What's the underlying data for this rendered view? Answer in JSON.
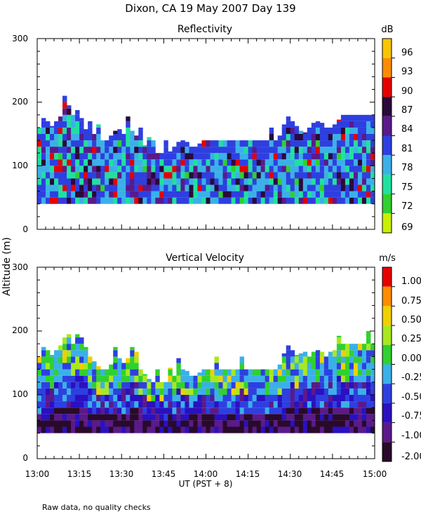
{
  "chart_data": {
    "type": "heatmap",
    "title": "Dixon, CA 19 May 2007  Day 139",
    "ylabel": "Altitude (m)",
    "xlabel": "UT  (PST + 8)",
    "x_ticks": [
      "13:00",
      "13:15",
      "13:30",
      "13:45",
      "14:00",
      "14:15",
      "14:30",
      "14:45",
      "15:00"
    ],
    "xlim_minutes": [
      0,
      120
    ],
    "note": "Raw data, no quality checks",
    "panels": [
      {
        "name": "reflectivity",
        "subtitle": "Reflectivity",
        "units": "dB",
        "ylim": [
          0,
          300
        ],
        "y_ticks": [
          "0",
          "100",
          "200",
          "300"
        ],
        "colorbar_labels": [
          "96",
          "93",
          "90",
          "87",
          "84",
          "81",
          "78",
          "75",
          "72",
          "69"
        ],
        "colorbar_colors": [
          "#f7c600",
          "#ff8c00",
          "#e60000",
          "#2a0a3a",
          "#5a1a8a",
          "#2e3fe0",
          "#3bb0e8",
          "#20e0a0",
          "#30d030",
          "#c8f000"
        ],
        "data_floor_m": 40,
        "echo_top_profile": [
          [
            0,
            160
          ],
          [
            2,
            180
          ],
          [
            4,
            160
          ],
          [
            6,
            170
          ],
          [
            8,
            180
          ],
          [
            10,
            200
          ],
          [
            12,
            180
          ],
          [
            14,
            190
          ],
          [
            16,
            160
          ],
          [
            18,
            150
          ],
          [
            20,
            150
          ],
          [
            22,
            140
          ],
          [
            24,
            140
          ],
          [
            26,
            150
          ],
          [
            28,
            160
          ],
          [
            30,
            150
          ],
          [
            32,
            160
          ],
          [
            34,
            150
          ],
          [
            36,
            140
          ],
          [
            38,
            130
          ],
          [
            40,
            120
          ],
          [
            42,
            120
          ],
          [
            44,
            120
          ],
          [
            46,
            120
          ],
          [
            48,
            130
          ],
          [
            50,
            140
          ],
          [
            52,
            140
          ],
          [
            54,
            130
          ],
          [
            56,
            130
          ],
          [
            58,
            140
          ],
          [
            60,
            140
          ],
          [
            62,
            140
          ],
          [
            64,
            140
          ],
          [
            66,
            140
          ],
          [
            68,
            140
          ],
          [
            70,
            140
          ],
          [
            72,
            140
          ],
          [
            74,
            140
          ],
          [
            76,
            140
          ],
          [
            78,
            140
          ],
          [
            80,
            140
          ],
          [
            82,
            140
          ],
          [
            84,
            140
          ],
          [
            86,
            150
          ],
          [
            88,
            180
          ],
          [
            90,
            170
          ],
          [
            92,
            160
          ],
          [
            94,
            150
          ],
          [
            96,
            160
          ],
          [
            98,
            170
          ],
          [
            100,
            170
          ],
          [
            102,
            160
          ],
          [
            104,
            160
          ],
          [
            106,
            170
          ],
          [
            108,
            180
          ],
          [
            110,
            180
          ],
          [
            112,
            180
          ],
          [
            114,
            180
          ],
          [
            116,
            180
          ],
          [
            118,
            180
          ],
          [
            120,
            180
          ]
        ]
      },
      {
        "name": "vertical-velocity",
        "subtitle": "Vertical Velocity",
        "units": "m/s",
        "ylim": [
          0,
          300
        ],
        "y_ticks": [
          "0",
          "100",
          "200",
          "300"
        ],
        "colorbar_labels": [
          "1.00",
          "0.75",
          "0.50",
          "0.25",
          "0.00",
          "-0.25",
          "-0.50",
          "-0.75",
          "-1.00",
          "-2.00"
        ],
        "colorbar_colors": [
          "#e60000",
          "#ff8c00",
          "#f0d000",
          "#a8e820",
          "#30d030",
          "#3bb0e8",
          "#2e3fe0",
          "#2a10c0",
          "#5a1a8a",
          "#2a0a2a"
        ],
        "data_floor_m": 40,
        "echo_top_profile": [
          [
            0,
            160
          ],
          [
            2,
            180
          ],
          [
            4,
            160
          ],
          [
            6,
            170
          ],
          [
            8,
            180
          ],
          [
            10,
            200
          ],
          [
            12,
            180
          ],
          [
            14,
            200
          ],
          [
            16,
            180
          ],
          [
            18,
            160
          ],
          [
            20,
            150
          ],
          [
            22,
            140
          ],
          [
            24,
            140
          ],
          [
            26,
            150
          ],
          [
            28,
            160
          ],
          [
            30,
            150
          ],
          [
            32,
            160
          ],
          [
            34,
            150
          ],
          [
            36,
            140
          ],
          [
            38,
            130
          ],
          [
            40,
            120
          ],
          [
            42,
            120
          ],
          [
            44,
            120
          ],
          [
            46,
            120
          ],
          [
            48,
            130
          ],
          [
            50,
            140
          ],
          [
            52,
            140
          ],
          [
            54,
            130
          ],
          [
            56,
            130
          ],
          [
            58,
            140
          ],
          [
            60,
            140
          ],
          [
            62,
            140
          ],
          [
            64,
            140
          ],
          [
            66,
            140
          ],
          [
            68,
            140
          ],
          [
            70,
            140
          ],
          [
            72,
            140
          ],
          [
            74,
            140
          ],
          [
            76,
            140
          ],
          [
            78,
            140
          ],
          [
            80,
            140
          ],
          [
            82,
            140
          ],
          [
            84,
            140
          ],
          [
            86,
            150
          ],
          [
            88,
            180
          ],
          [
            90,
            170
          ],
          [
            92,
            160
          ],
          [
            94,
            170
          ],
          [
            96,
            160
          ],
          [
            98,
            170
          ],
          [
            100,
            170
          ],
          [
            102,
            160
          ],
          [
            104,
            170
          ],
          [
            106,
            170
          ],
          [
            108,
            180
          ],
          [
            110,
            180
          ],
          [
            112,
            180
          ],
          [
            114,
            180
          ],
          [
            116,
            180
          ],
          [
            118,
            180
          ],
          [
            120,
            180
          ]
        ]
      }
    ]
  }
}
